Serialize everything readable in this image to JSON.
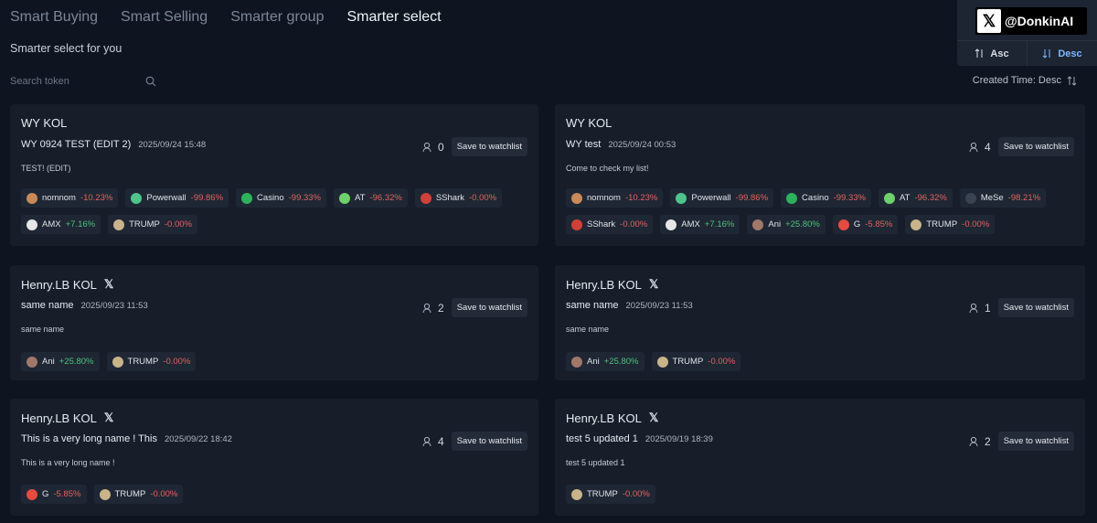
{
  "tabs": [
    "Smart Buying",
    "Smart Selling",
    "Smarter group",
    "Smarter select"
  ],
  "subtitle": "Smarter select for you",
  "search": {
    "placeholder": "Search token"
  },
  "sort": {
    "label": "Created Time: Desc"
  },
  "popup": {
    "handle": "@DonkinAI",
    "asc": "Asc",
    "desc": "Desc"
  },
  "watch_label": "Save to watchlist",
  "cards": [
    {
      "owner": "WY KOL",
      "show_x": false,
      "name": "WY 0924 TEST (EDIT 2)",
      "date": "2025/09/24 15:48",
      "desc": "TEST! (EDIT)",
      "followers": "0",
      "token_rows": [
        [
          {
            "name": "nomnom",
            "change": "-10.23%",
            "color": "#c98a5a"
          },
          {
            "name": "Powerwall",
            "change": "-99.86%",
            "color": "#4ec48a"
          },
          {
            "name": "Casino",
            "change": "-99.33%",
            "color": "#2bb35c"
          },
          {
            "name": "AT",
            "change": "-96.32%",
            "color": "#6fd16a"
          },
          {
            "name": "SShark",
            "change": "-0.00%",
            "color": "#d2403a"
          }
        ],
        [
          {
            "name": "AMX",
            "change": "+7.16%",
            "color": "#e6e6e6"
          },
          {
            "name": "TRUMP",
            "change": "-0.00%",
            "color": "#c9b48a"
          }
        ]
      ]
    },
    {
      "owner": "WY KOL",
      "show_x": false,
      "name": "WY test",
      "date": "2025/09/24 00:53",
      "desc": "Come to check my list!",
      "followers": "4",
      "token_rows": [
        [
          {
            "name": "nomnom",
            "change": "-10.23%",
            "color": "#c98a5a"
          },
          {
            "name": "Powerwall",
            "change": "-99.86%",
            "color": "#4ec48a"
          },
          {
            "name": "Casino",
            "change": "-99.33%",
            "color": "#2bb35c"
          },
          {
            "name": "AT",
            "change": "-96.32%",
            "color": "#6fd16a"
          },
          {
            "name": "MeSe",
            "change": "-98.21%",
            "color": "#3a4352"
          }
        ],
        [
          {
            "name": "SShark",
            "change": "-0.00%",
            "color": "#d2403a"
          },
          {
            "name": "AMX",
            "change": "+7.16%",
            "color": "#e6e6e6"
          },
          {
            "name": "Ani",
            "change": "+25.80%",
            "color": "#a0786a"
          },
          {
            "name": "G",
            "change": "-5.85%",
            "color": "#e84a3f"
          },
          {
            "name": "TRUMP",
            "change": "-0.00%",
            "color": "#c9b48a"
          }
        ]
      ]
    },
    {
      "owner": "Henry.LB KOL",
      "show_x": true,
      "name": "same name",
      "date": "2025/09/23 11:53",
      "desc": "same name",
      "followers": "2",
      "token_rows": [
        [
          {
            "name": "Ani",
            "change": "+25.80%",
            "color": "#a0786a"
          },
          {
            "name": "TRUMP",
            "change": "-0.00%",
            "color": "#c9b48a"
          }
        ]
      ]
    },
    {
      "owner": "Henry.LB KOL",
      "show_x": true,
      "name": "same name",
      "date": "2025/09/23 11:53",
      "desc": "same name",
      "followers": "1",
      "token_rows": [
        [
          {
            "name": "Ani",
            "change": "+25.80%",
            "color": "#a0786a"
          },
          {
            "name": "TRUMP",
            "change": "-0.00%",
            "color": "#c9b48a"
          }
        ]
      ]
    },
    {
      "owner": "Henry.LB KOL",
      "show_x": true,
      "name": "This is a very long name ! This",
      "date": "2025/09/22 18:42",
      "desc": "This is a very long name !",
      "followers": "4",
      "token_rows": [
        [
          {
            "name": "G",
            "change": "-5.85%",
            "color": "#e84a3f"
          },
          {
            "name": "TRUMP",
            "change": "-0.00%",
            "color": "#c9b48a"
          }
        ]
      ]
    },
    {
      "owner": "Henry.LB KOL",
      "show_x": true,
      "name": "test 5 updated 1",
      "date": "2025/09/19 18:39",
      "desc": "test 5 updated 1",
      "followers": "2",
      "token_rows": [
        [
          {
            "name": "TRUMP",
            "change": "-0.00%",
            "color": "#c9b48a"
          }
        ]
      ]
    }
  ]
}
